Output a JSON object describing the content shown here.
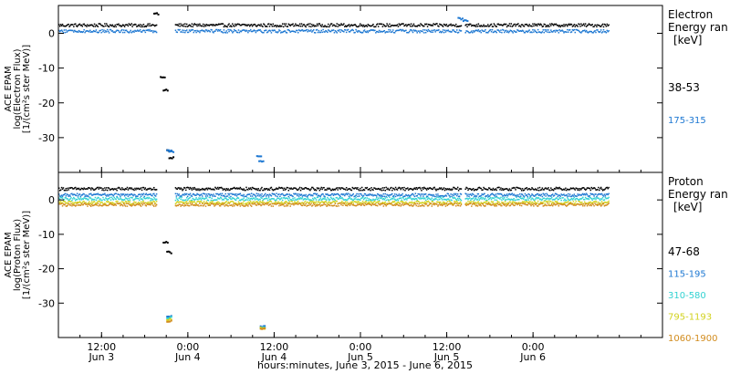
{
  "colors": {
    "c38": "#000000",
    "c175": "#1e78d2",
    "c47": "#000000",
    "c115": "#1e78d2",
    "c310": "#32d2d2",
    "c795": "#d2d21e",
    "c1060": "#d28c1e",
    "axis": "#000000"
  },
  "chart_data": [
    {
      "type": "scatter",
      "panel": "electron",
      "ylabel_lines": [
        "ACE EPAM",
        "log(Electron Flux)",
        "[1/(cm²s ster MeV)]"
      ],
      "ylim": [
        -40,
        8
      ],
      "yticks": [
        0,
        -10,
        -20,
        -30
      ],
      "legend": {
        "title_lines": [
          "Electron",
          "Energy ran",
          "[keV]"
        ],
        "placement": "right",
        "entries": [
          "38-53",
          "175-315"
        ]
      },
      "series": [
        {
          "name": "38-53",
          "color_key": "c38",
          "base": 2.5,
          "x": [
            0,
            12,
            13.2,
            13.5,
            14.1,
            14.5,
            15,
            15.3,
            16.2,
            16.8,
            24,
            36,
            48,
            60,
            68,
            72,
            76.5
          ],
          "values": [
            2.5,
            2.4,
            5.8,
            2.2,
            -12.5,
            -16,
            -33.5,
            -35.5,
            2.5,
            2.5,
            2.5,
            2.5,
            2.6,
            2.4,
            2.5,
            2.5,
            2.5
          ]
        },
        {
          "name": "175-315",
          "color_key": "c175",
          "base": 0.8,
          "x": [
            0,
            12,
            14,
            15,
            15.3,
            16.5,
            24,
            27.5,
            27.8,
            36,
            48,
            55.5,
            56.2,
            60,
            76.5
          ],
          "values": [
            0.8,
            0.8,
            0.5,
            -33.5,
            -33.8,
            0.8,
            0.8,
            -35,
            -36.5,
            0.8,
            0.8,
            4.5,
            4,
            0.8,
            0.8
          ]
        }
      ]
    },
    {
      "type": "scatter",
      "panel": "proton",
      "ylabel_lines": [
        "ACE EPAM",
        "log(Proton Flux)",
        "[1/(cm²s ster MeV)]"
      ],
      "ylim": [
        -40,
        8
      ],
      "yticks": [
        0,
        -10,
        -20,
        -30
      ],
      "legend": {
        "title_lines": [
          "Proton",
          "Energy ran",
          "[keV]"
        ],
        "placement": "right",
        "entries": [
          "47-68",
          "115-195",
          "310-580",
          "795-1193",
          "1060-1900"
        ]
      },
      "series": [
        {
          "name": "47-68",
          "color_key": "c47",
          "base": 3.4,
          "x": [
            0,
            12,
            14.5,
            15,
            16,
            24,
            48,
            76.5
          ],
          "values": [
            3.4,
            3.4,
            -12,
            -15,
            3.4,
            3.4,
            3.4,
            3.4
          ]
        },
        {
          "name": "115-195",
          "color_key": "c115",
          "base": 1.6,
          "x": [
            0,
            12,
            15,
            16,
            28,
            48,
            76.5
          ],
          "values": [
            1.6,
            1.6,
            -33.5,
            1.6,
            -36.5,
            1.6,
            1.6
          ]
        },
        {
          "name": "310-580",
          "color_key": "c310",
          "base": 0.5,
          "x": [
            0,
            12,
            15,
            16,
            28,
            48,
            76.5
          ],
          "values": [
            0.5,
            0.5,
            -34,
            0.5,
            -36.8,
            0.5,
            0.5
          ]
        },
        {
          "name": "795-1193",
          "color_key": "c795",
          "base": -0.6,
          "x": [
            0,
            12,
            15,
            16,
            28,
            48,
            76.5
          ],
          "values": [
            -0.6,
            -0.6,
            -34.5,
            -0.6,
            -37,
            -0.6,
            -0.6
          ]
        },
        {
          "name": "1060-1900",
          "color_key": "c1060",
          "base": -1.2,
          "x": [
            0,
            12,
            15,
            16,
            28,
            48,
            76.5
          ],
          "values": [
            -1.2,
            -1.2,
            -35,
            -1.2,
            -37.2,
            -1.2,
            -1.2
          ]
        }
      ]
    }
  ],
  "x_axis": {
    "xlabel": "hours:minutes, June  3, 2015 - June  6, 2015",
    "xlim": [
      "2015-06-03 06:00",
      "2015-06-06 18:00"
    ],
    "ticks": [
      {
        "t": "2015-06-03 12:00",
        "time": "12:00",
        "day": "Jun 3"
      },
      {
        "t": "2015-06-04 00:00",
        "time": "0:00",
        "day": "Jun 4"
      },
      {
        "t": "2015-06-04 12:00",
        "time": "12:00",
        "day": "Jun 4"
      },
      {
        "t": "2015-06-05 00:00",
        "time": "0:00",
        "day": "Jun 5"
      },
      {
        "t": "2015-06-05 12:00",
        "time": "12:00",
        "day": "Jun 5"
      },
      {
        "t": "2015-06-06 00:00",
        "time": "0:00",
        "day": "Jun 6"
      }
    ]
  }
}
